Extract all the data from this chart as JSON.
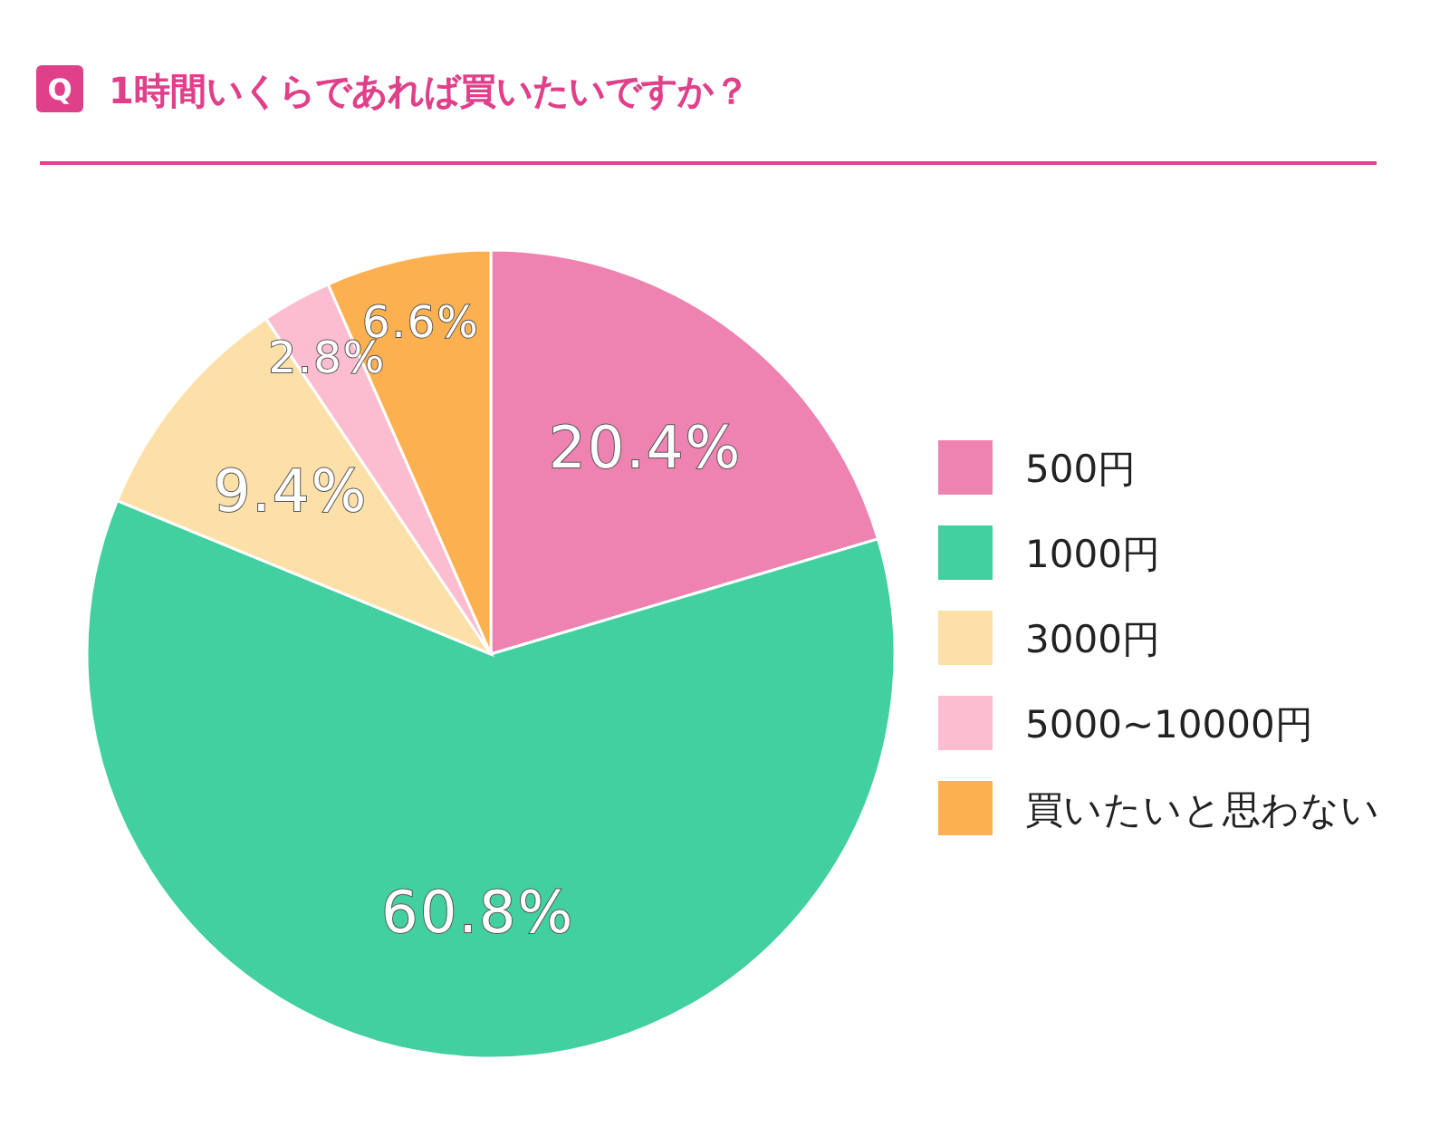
{
  "chart_data": {
    "type": "pie",
    "title": "1時間いくらであれば買いたいですか？",
    "annotations": [
      "Q"
    ],
    "categories": [
      "500円",
      "1000円",
      "3000円",
      "5000~10000円",
      "買いたいと思わない"
    ],
    "values": [
      20.4,
      60.8,
      9.4,
      2.8,
      6.6
    ],
    "colors": [
      "#ee82b0",
      "#42d0a0",
      "#fce0a8",
      "#fdbdd0",
      "#fdb050"
    ],
    "value_labels": [
      "20.4%",
      "60.8%",
      "9.4%",
      "2.8%",
      "6.6%"
    ],
    "legend": "right"
  }
}
